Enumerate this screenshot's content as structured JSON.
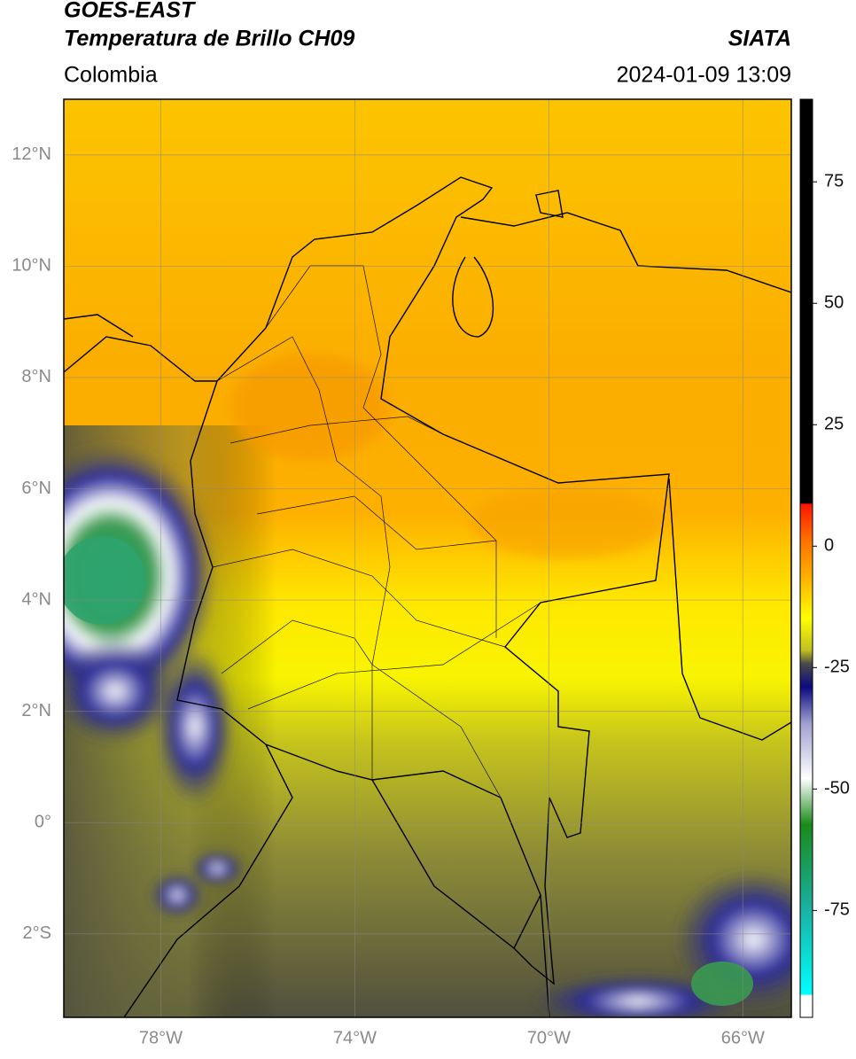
{
  "header": {
    "title_line1": "GOES-EAST",
    "title_line2": "Temperatura de Brillo CH09",
    "region": "Colombia",
    "source": "SIATA",
    "datetime": "2024-01-09 13:09"
  },
  "map": {
    "lon_lim": [
      -80,
      -65
    ],
    "lat_lim": [
      -3.5,
      13
    ],
    "lon_ticks": [
      {
        "value": -78,
        "label": "78°W"
      },
      {
        "value": -74,
        "label": "74°W"
      },
      {
        "value": -70,
        "label": "70°W"
      },
      {
        "value": -66,
        "label": "66°W"
      }
    ],
    "lat_ticks": [
      {
        "value": 12,
        "label": "12°N"
      },
      {
        "value": 10,
        "label": "10°N"
      },
      {
        "value": 8,
        "label": "8°N"
      },
      {
        "value": 6,
        "label": "6°N"
      },
      {
        "value": 4,
        "label": "4°N"
      },
      {
        "value": 2,
        "label": "2°N"
      },
      {
        "value": 0,
        "label": "0°"
      },
      {
        "value": -2,
        "label": "2°S"
      }
    ]
  },
  "colorbar": {
    "lim": [
      -97,
      92
    ],
    "ticks": [
      75,
      50,
      25,
      0,
      -25,
      -50,
      -75
    ]
  }
}
